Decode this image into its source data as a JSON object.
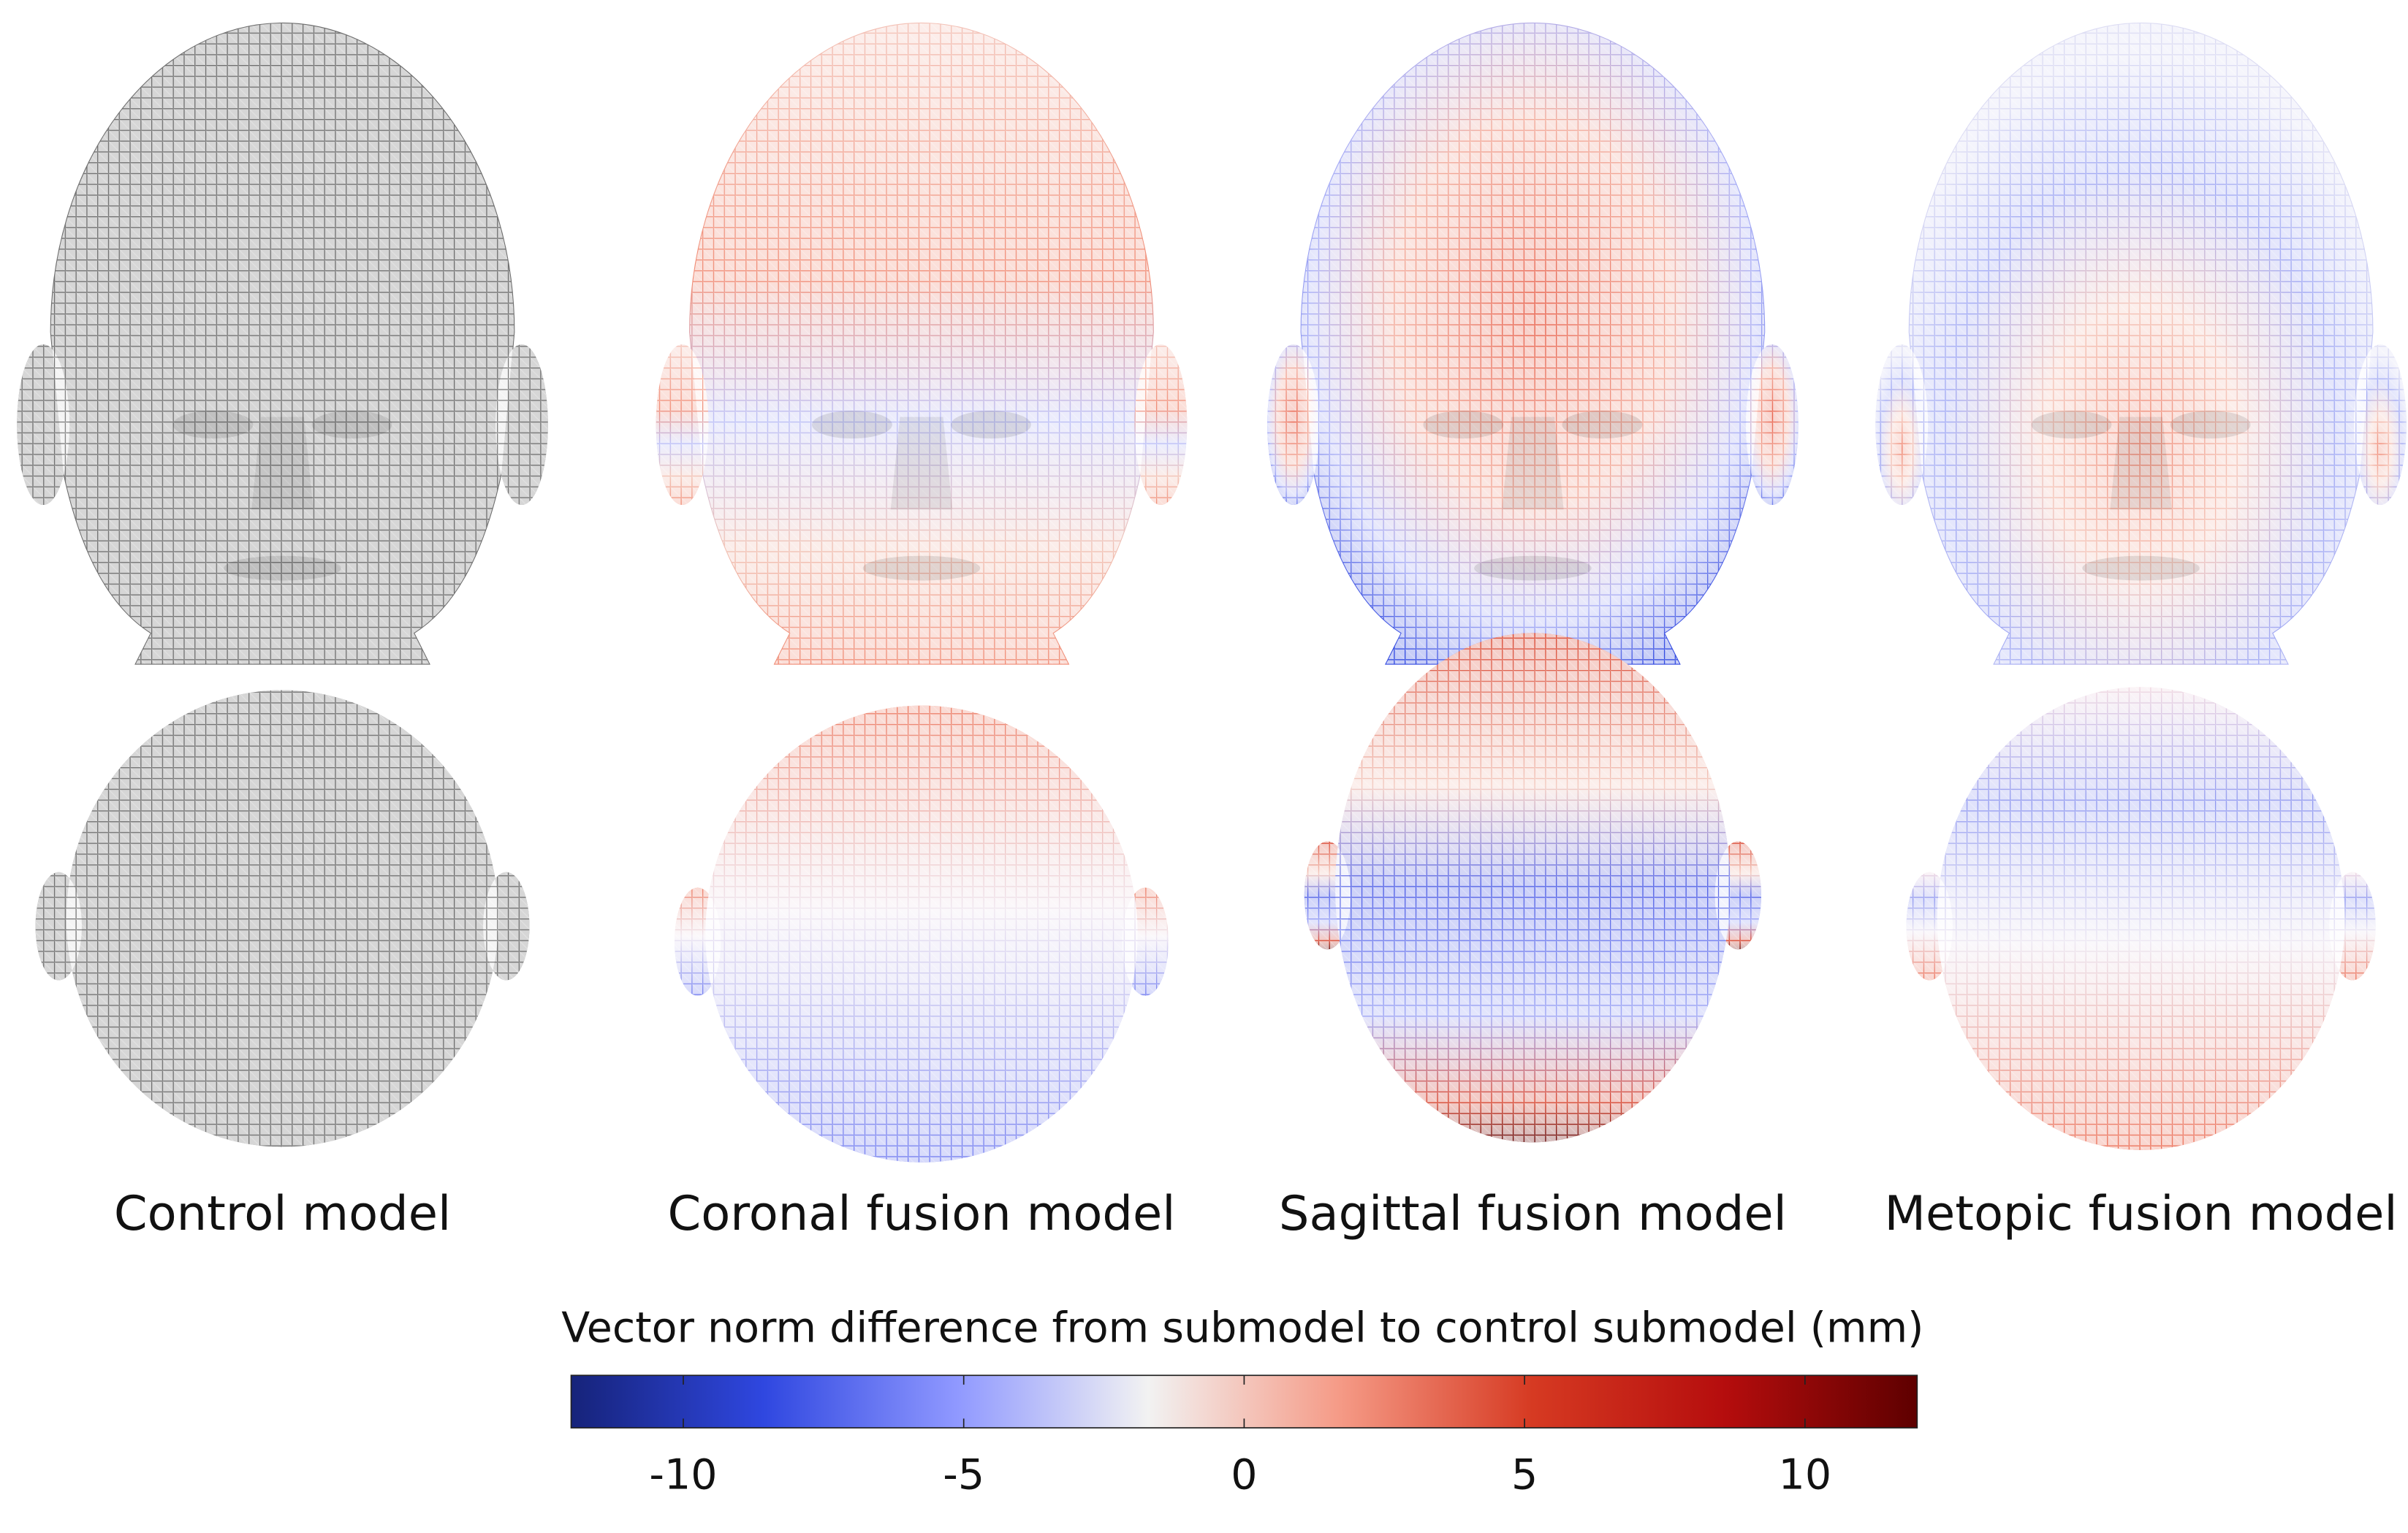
{
  "chart_data": {
    "type": "colorbar",
    "panels": [
      "Control model",
      "Coronal fusion model",
      "Sagittal fusion model",
      "Metopic fusion model"
    ],
    "title": "Vector norm difference from submodel to control submodel (mm)",
    "xlim": [
      -12,
      12
    ],
    "xticks": [
      -10,
      -5,
      0,
      5,
      10
    ],
    "colors": [
      "#16237a",
      "#2f47e0",
      "#8f98ff",
      "#f2f2f2",
      "#f59a86",
      "#d63a22",
      "#b50d0d",
      "#5e0000"
    ]
  }
}
